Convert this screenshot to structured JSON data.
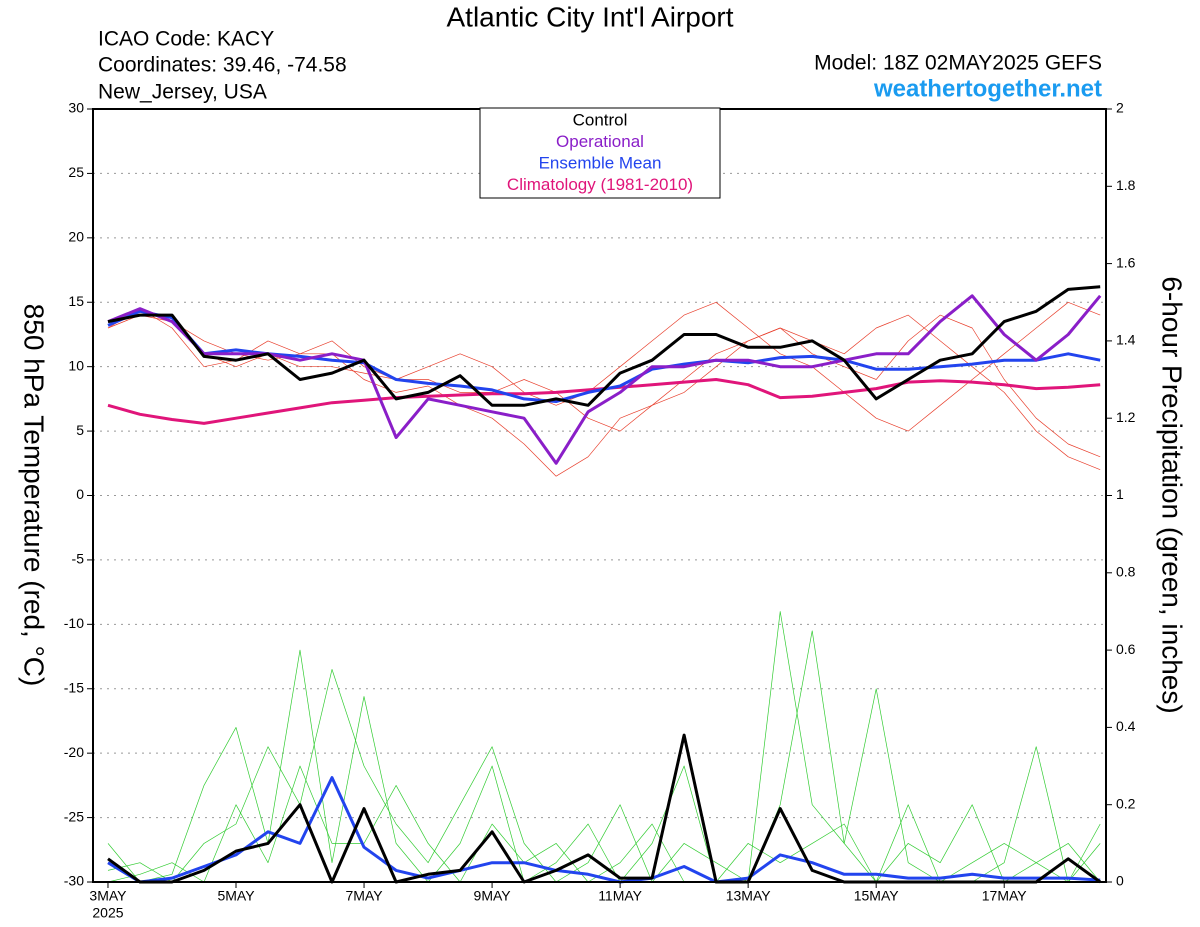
{
  "chart_data": {
    "type": "line",
    "title": "Atlantic City Int'l Airport",
    "info_left": [
      "ICAO Code: KACY",
      "Coordinates: 39.46, -74.58",
      "New_Jersey, USA"
    ],
    "model": "Model: 18Z 02MAY2025 GEFS",
    "source": "weathertogether.net",
    "ylabel": "850 hPa Temperature (red, °C)",
    "y2label": "6-hour Precipitation (green, inches)",
    "year_label": "2025",
    "xlim": [
      -0.234,
      15.59
    ],
    "xticks": [
      {
        "value": 0,
        "label": "3MAY"
      },
      {
        "value": 2,
        "label": "5MAY"
      },
      {
        "value": 4,
        "label": "7MAY"
      },
      {
        "value": 6,
        "label": "9MAY"
      },
      {
        "value": 8,
        "label": "11MAY"
      },
      {
        "value": 10,
        "label": "13MAY"
      },
      {
        "value": 12,
        "label": "15MAY"
      },
      {
        "value": 14,
        "label": "17MAY"
      }
    ],
    "ylim": [
      -30,
      30
    ],
    "yticks": [
      -30,
      -25,
      -20,
      -15,
      -10,
      -5,
      0,
      5,
      10,
      15,
      20,
      25,
      30
    ],
    "y2lim": [
      0,
      2
    ],
    "y2ticks": [
      0,
      0.2,
      0.4,
      0.6,
      0.8,
      1,
      1.2,
      1.4,
      1.6,
      1.8,
      2
    ],
    "grid": true,
    "x": [
      0,
      0.5,
      1,
      1.5,
      2,
      2.5,
      3,
      3.5,
      4,
      4.5,
      5,
      5.5,
      6,
      6.5,
      7,
      7.5,
      8,
      8.5,
      9,
      9.5,
      10,
      10.5,
      11,
      11.5,
      12,
      12.5,
      13,
      13.5,
      14,
      14.5,
      15,
      15.5
    ],
    "series": [
      {
        "color": "#e8402e",
        "width": 0.7,
        "axis": "y",
        "values": [
          13,
          14.5,
          13,
          10,
          10.5,
          12,
          11,
          11,
          9,
          8,
          8.5,
          7,
          6,
          4,
          1.5,
          3,
          6,
          7,
          8,
          10,
          12,
          13,
          11,
          10,
          9,
          12,
          14,
          13,
          9,
          6,
          4,
          3
        ]
      },
      {
        "color": "#e8402e",
        "width": 0.7,
        "axis": "y",
        "values": [
          13,
          14,
          14,
          11,
          10,
          11,
          10,
          10,
          9.5,
          9,
          10,
          11,
          10,
          8,
          7,
          8,
          10,
          12,
          14,
          15,
          13,
          11,
          10,
          8,
          6,
          5,
          7,
          9,
          11,
          13,
          15,
          14
        ]
      },
      {
        "color": "#e8402e",
        "width": 0.7,
        "axis": "y",
        "values": [
          13.5,
          14,
          13.5,
          12,
          11,
          10.5,
          11,
          12,
          10,
          9,
          9,
          8,
          8,
          9,
          8,
          6,
          5,
          7,
          9,
          11,
          12,
          13,
          12,
          11,
          13,
          14,
          12,
          10,
          8,
          5,
          3,
          2
        ]
      },
      {
        "color": "#33cc33",
        "width": 0.7,
        "axis": "y2",
        "values": [
          0.1,
          0,
          0.02,
          0.25,
          0.4,
          0.1,
          0.6,
          0.05,
          0.48,
          0.1,
          0,
          0.1,
          0.3,
          0,
          0.05,
          0.15,
          0,
          0.1,
          0.3,
          0,
          0,
          0.7,
          0.2,
          0.1,
          0.5,
          0.05,
          0,
          0,
          0.05,
          0.35,
          0,
          0.1
        ]
      },
      {
        "color": "#33cc33",
        "width": 0.7,
        "axis": "y2",
        "values": [
          0.03,
          0.05,
          0,
          0.1,
          0.15,
          0.35,
          0.2,
          0.55,
          0.3,
          0.15,
          0.05,
          0.2,
          0.35,
          0.1,
          0,
          0.05,
          0.2,
          0,
          0.1,
          0.05,
          0,
          0.2,
          0.65,
          0.1,
          0,
          0.1,
          0.05,
          0.2,
          0,
          0.05,
          0.1,
          0
        ]
      },
      {
        "color": "#33cc33",
        "width": 0.7,
        "axis": "y2",
        "values": [
          0,
          0.02,
          0.05,
          0,
          0.2,
          0.05,
          0.3,
          0.1,
          0.1,
          0.25,
          0.1,
          0,
          0.15,
          0.05,
          0.1,
          0,
          0.05,
          0.15,
          0,
          0,
          0.1,
          0.05,
          0.1,
          0.15,
          0,
          0.2,
          0,
          0.05,
          0.1,
          0.05,
          0,
          0.15
        ]
      },
      {
        "name": "Climatology (1981-2010)",
        "color": "#e0157a",
        "width": 3,
        "axis": "y",
        "values": [
          7,
          6.3,
          5.9,
          5.6,
          6,
          6.4,
          6.8,
          7.2,
          7.4,
          7.6,
          7.7,
          7.8,
          7.9,
          7.9,
          8,
          8.2,
          8.4,
          8.6,
          8.8,
          9,
          8.6,
          7.6,
          7.7,
          8,
          8.3,
          8.8,
          8.9,
          8.8,
          8.6,
          8.3,
          8.4,
          8.6
        ]
      },
      {
        "name": "Ensemble Mean",
        "color": "#2244ee",
        "width": 3,
        "axis": "y",
        "values": [
          13.2,
          14.3,
          13.8,
          11,
          11.3,
          11,
          10.8,
          10.5,
          10.3,
          9,
          8.7,
          8.5,
          8.2,
          7.5,
          7.3,
          8,
          8.5,
          9.8,
          10.2,
          10.5,
          10.3,
          10.7,
          10.8,
          10.5,
          9.8,
          9.8,
          10,
          10.2,
          10.5,
          10.5,
          11,
          10.5
        ]
      },
      {
        "name": "Operational",
        "color": "#8a1ec8",
        "width": 3,
        "axis": "y",
        "values": [
          13.5,
          14.5,
          13.5,
          11,
          11,
          11,
          10.5,
          11,
          10.5,
          4.5,
          7.5,
          7,
          6.5,
          6,
          2.5,
          6.5,
          8,
          10,
          10,
          10.5,
          10.5,
          10,
          10,
          10.5,
          11,
          11,
          13.5,
          15.5,
          12.5,
          10.5,
          12.5,
          15.5
        ]
      },
      {
        "name": "Control",
        "color": "#000000",
        "width": 3,
        "axis": "y",
        "values": [
          13.5,
          14,
          14,
          10.8,
          10.5,
          11,
          9,
          9.5,
          10.5,
          7.5,
          8,
          9.3,
          7,
          7,
          7.5,
          7,
          9.5,
          10.5,
          12.5,
          12.5,
          11.5,
          11.5,
          12,
          10.5,
          7.5,
          9,
          10.5,
          11,
          13.5,
          14.3,
          16,
          16.2
        ]
      },
      {
        "color": "#2244ee",
        "width": 3,
        "axis": "y2",
        "values": [
          0.05,
          0,
          0.01,
          0.04,
          0.07,
          0.13,
          0.1,
          0.27,
          0.09,
          0.03,
          0.01,
          0.03,
          0.05,
          0.05,
          0.03,
          0.02,
          0,
          0.01,
          0.04,
          0,
          0.01,
          0.07,
          0.05,
          0.02,
          0.02,
          0.01,
          0.01,
          0.02,
          0.01,
          0.01,
          0.01,
          0.005
        ]
      },
      {
        "color": "#000000",
        "width": 3,
        "axis": "y2",
        "values": [
          0.06,
          0,
          0,
          0.03,
          0.08,
          0.1,
          0.2,
          0,
          0.19,
          0,
          0.02,
          0.03,
          0.13,
          0,
          0.03,
          0.07,
          0.01,
          0.01,
          0.38,
          0,
          0,
          0.19,
          0.03,
          0,
          0,
          0,
          0,
          0,
          0,
          0,
          0.06,
          0
        ]
      }
    ],
    "legend_order": [
      9,
      8,
      7,
      6
    ]
  }
}
